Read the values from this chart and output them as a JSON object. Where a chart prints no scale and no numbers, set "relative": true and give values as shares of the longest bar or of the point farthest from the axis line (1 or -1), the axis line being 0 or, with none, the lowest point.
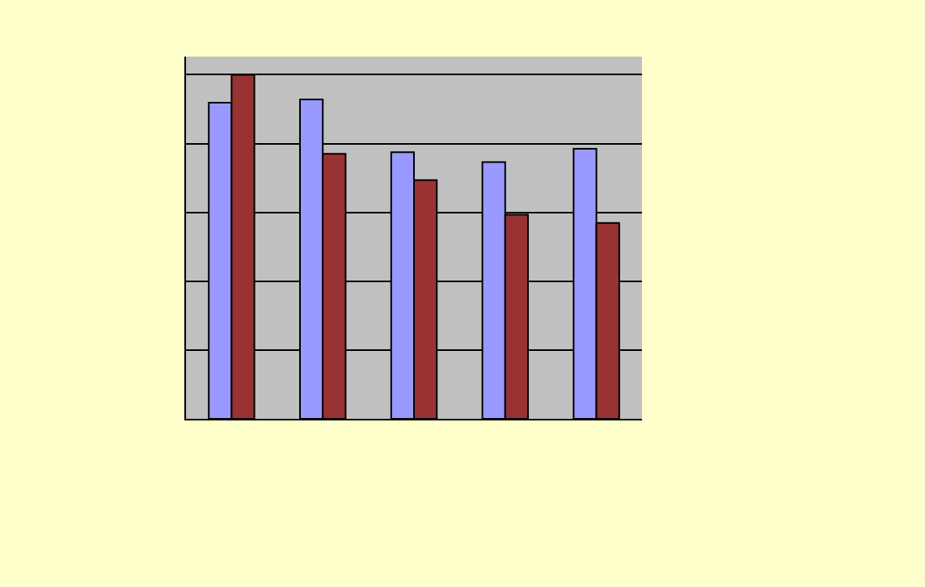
{
  "chart_data": {
    "type": "bar",
    "relative": true,
    "categories": [
      null,
      null,
      null,
      null,
      null
    ],
    "series": [
      {
        "color": "#9999ff",
        "values": [
          0.919,
          0.928,
          0.775,
          0.746,
          0.785
        ]
      },
      {
        "color": "#993333",
        "values": [
          1,
          0.77,
          0.694,
          0.593,
          0.569
        ]
      }
    ],
    "grid": "y"
  }
}
